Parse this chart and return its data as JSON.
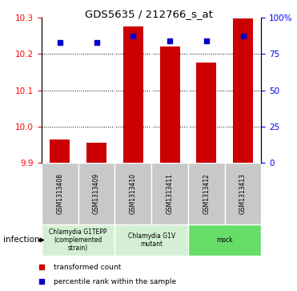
{
  "title": "GDS5635 / 212766_s_at",
  "samples": [
    "GSM1313408",
    "GSM1313409",
    "GSM1313410",
    "GSM1313411",
    "GSM1313412",
    "GSM1313413"
  ],
  "bar_values": [
    9.965,
    9.955,
    10.275,
    10.22,
    10.175,
    10.298
  ],
  "percentile_values": [
    83,
    83,
    87,
    84,
    84,
    87
  ],
  "bar_color": "#cc0000",
  "dot_color": "#0000cc",
  "ylim_left": [
    9.9,
    10.3
  ],
  "ylim_right": [
    0,
    100
  ],
  "yticks_left": [
    9.9,
    10.0,
    10.1,
    10.2,
    10.3
  ],
  "yticks_right": [
    0,
    25,
    50,
    75,
    100
  ],
  "ytick_labels_right": [
    "0",
    "25",
    "50",
    "75",
    "100%"
  ],
  "groups": [
    {
      "label": "Chlamydia G1TEPP\n(complemented\nstrain)",
      "indices": [
        0,
        1
      ],
      "color": "#d4f0d4"
    },
    {
      "label": "Chlamydia G1V\nmutant",
      "indices": [
        2,
        3
      ],
      "color": "#d4f0d4"
    },
    {
      "label": "mock",
      "indices": [
        4,
        5
      ],
      "color": "#66dd66"
    }
  ],
  "sample_box_color": "#c8c8c8",
  "factor_label": "infection",
  "legend_items": [
    {
      "label": "transformed count",
      "color": "#cc0000"
    },
    {
      "label": "percentile rank within the sample",
      "color": "#0000cc"
    }
  ],
  "bar_bottom": 9.9,
  "grid_dotted_at": [
    10.0,
    10.1,
    10.2
  ],
  "bar_width": 0.55
}
